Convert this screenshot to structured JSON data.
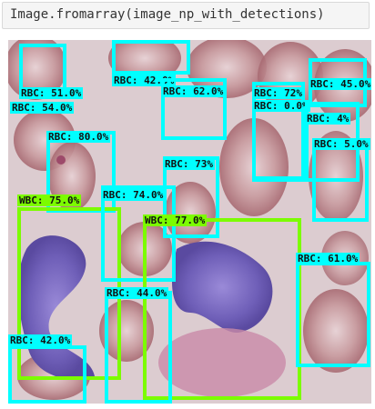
{
  "cell": {
    "code": "Image.fromarray(image_np_with_detections)"
  },
  "colors": {
    "rbc": "#00ffff",
    "wbc": "#7cfc00"
  },
  "detections": [
    {
      "label": "RBC: 42.0%",
      "class": "rbc"
    },
    {
      "label": "RBC: 62.0%",
      "class": "rbc"
    },
    {
      "label": "RBC: 72%",
      "class": "rbc"
    },
    {
      "label": "RBC: 45.0%",
      "class": "rbc"
    },
    {
      "label": "RBC: 51.0%",
      "class": "rbc"
    },
    {
      "label": "RBC: 54.0%",
      "class": "rbc"
    },
    {
      "label": "RBC: 0.0%",
      "class": "rbc"
    },
    {
      "label": "RBC: 4%",
      "class": "rbc"
    },
    {
      "label": "RBC: 5.0%",
      "class": "rbc"
    },
    {
      "label": "RBC: 80.0%",
      "class": "rbc"
    },
    {
      "label": "RBC: 73%",
      "class": "rbc"
    },
    {
      "label": "WBC: 75.0%",
      "class": "wbc"
    },
    {
      "label": "RBC: 74.0%",
      "class": "rbc"
    },
    {
      "label": "WBC: 77.0%",
      "class": "wbc"
    },
    {
      "label": "RBC: 61.0%",
      "class": "rbc"
    },
    {
      "label": "RBC: 44.0%",
      "class": "rbc"
    },
    {
      "label": "RBC: 42.0%",
      "class": "rbc"
    }
  ]
}
